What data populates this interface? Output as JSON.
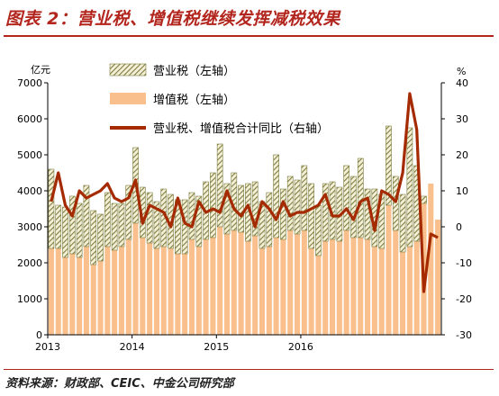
{
  "figure_title": "图表 2：营业税、增值税继续发挥减税效果",
  "source": "资料来源：财政部、CEIC、中金公司研究部",
  "left_unit": "亿元",
  "right_unit": "%",
  "colors": {
    "business_tax": "#8a8a4a",
    "vat": "#f9c08d",
    "yoy": "#a52a00",
    "title": "#b3261e"
  },
  "chart_data": {
    "type": "bar",
    "stacked": true,
    "x_ticks": [
      "2013",
      "2014",
      "2015",
      "2016"
    ],
    "y_left": {
      "range": [
        0,
        7000
      ],
      "ticks": [
        "0",
        "1000",
        "2000",
        "3000",
        "4000",
        "5000",
        "6000",
        "7000"
      ]
    },
    "y_right": {
      "range": [
        -30,
        40
      ],
      "ticks": [
        "-30",
        "-20",
        "-10",
        "0",
        "10",
        "20",
        "30",
        "40"
      ]
    },
    "legend_position": "top-center",
    "series": [
      {
        "name": "营业税（左轴）",
        "kind": "bar-hatched",
        "values": [
          2200,
          1200,
          1400,
          1600,
          1500,
          1700,
          1500,
          1300,
          1500,
          1300,
          1200,
          1500,
          2100,
          1400,
          1400,
          1300,
          1600,
          1500,
          1500,
          1500,
          1300,
          1400,
          1600,
          1800,
          2300,
          1400,
          1600,
          1300,
          1600,
          1500,
          1300,
          1500,
          2300,
          1400,
          1500,
          1500,
          1800,
          1800,
          1400,
          1600,
          1600,
          1500,
          1800,
          1700,
          2200,
          1400,
          1600,
          1500,
          2200,
          1500,
          1600,
          3300,
          2100,
          200,
          0,
          0
        ]
      },
      {
        "name": "增值税（左轴）",
        "kind": "bar",
        "values": [
          2400,
          2400,
          2150,
          2250,
          2150,
          2450,
          1950,
          2050,
          2450,
          2350,
          2450,
          2650,
          3100,
          2700,
          2550,
          2400,
          2450,
          2400,
          2250,
          2250,
          2650,
          2450,
          2650,
          2700,
          3000,
          2800,
          2900,
          2850,
          2600,
          2750,
          2400,
          2450,
          2700,
          2650,
          2900,
          2800,
          2900,
          2400,
          2200,
          2600,
          2650,
          2600,
          2900,
          2700,
          2700,
          2650,
          2450,
          2400,
          3600,
          2900,
          2300,
          2450,
          2600,
          3650,
          4200,
          3200
        ]
      },
      {
        "name": "营业税、增值税合计同比（右轴）",
        "kind": "line",
        "values": [
          7,
          15,
          6,
          3,
          10,
          8,
          9,
          10,
          12,
          8,
          7,
          8,
          13,
          1,
          6,
          5,
          4,
          0,
          8,
          1,
          0,
          7,
          4,
          5,
          4,
          10,
          5,
          3,
          6,
          0,
          7,
          5,
          2,
          7,
          3,
          4,
          4,
          5,
          6,
          9,
          3,
          3,
          5,
          2,
          7,
          8,
          -1,
          10,
          9,
          7,
          15,
          37,
          27,
          -18,
          -2,
          -3
        ]
      }
    ]
  }
}
